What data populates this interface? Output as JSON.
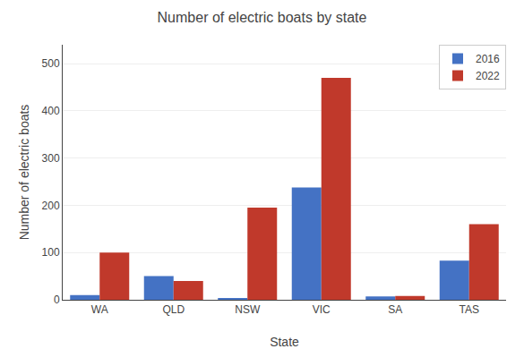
{
  "chart_data": {
    "type": "bar",
    "title": "Number of electric boats by state",
    "xlabel": "State",
    "ylabel": "Number of electric boats",
    "categories": [
      "WA",
      "QLD",
      "NSW",
      "VIC",
      "SA",
      "TAS"
    ],
    "series": [
      {
        "name": "2016",
        "color": "#4472c4",
        "values": [
          10,
          50,
          2,
          238,
          7,
          83
        ]
      },
      {
        "name": "2022",
        "color": "#c0392b",
        "values": [
          100,
          40,
          195,
          470,
          8,
          160
        ]
      }
    ],
    "ylim": [
      0,
      540
    ],
    "yticks": [
      0,
      100,
      200,
      300,
      400,
      500
    ],
    "grid": true,
    "legend": "upper right"
  }
}
